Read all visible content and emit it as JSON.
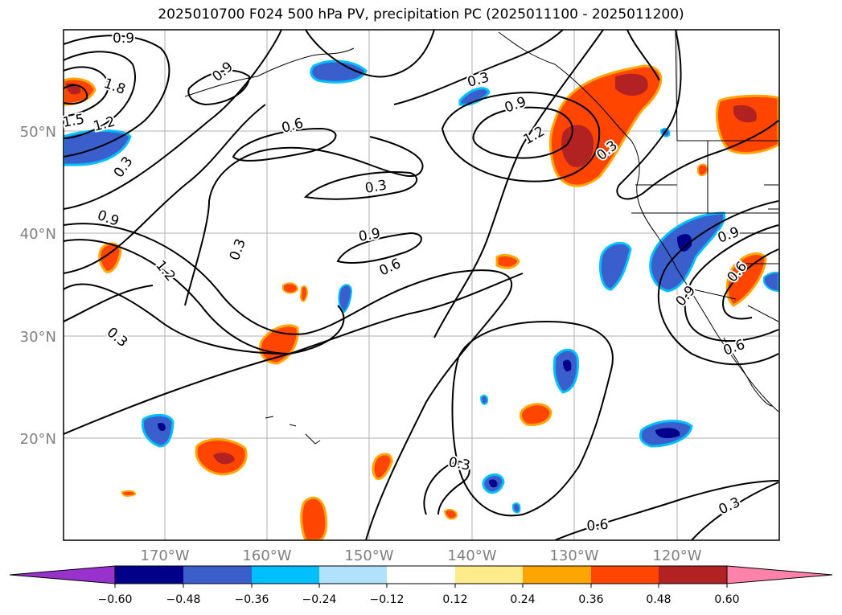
{
  "title": "2025010700 F024 500 hPa PV, precipitation PC (2025011100 - 2025011200)",
  "map": {
    "lat_labels": [
      "50°N",
      "40°N",
      "30°N",
      "20°N"
    ],
    "lon_labels": [
      "170°W",
      "160°W",
      "150°W",
      "140°W",
      "130°W",
      "120°W"
    ],
    "label_color": "#808080"
  },
  "contour_labels": [
    "0.9",
    "1.8",
    "1.5",
    "1.2",
    "0.3",
    "0.9",
    "1.2",
    "0.3",
    "0.3",
    "0.9",
    "0.6",
    "0.3",
    "0.9",
    "0.3",
    "0.9",
    "1.2",
    "0.6",
    "0.3",
    "0.3",
    "0.9",
    "0.6",
    "0.9",
    "0.6",
    "0.3",
    "0.6"
  ],
  "colorbar": {
    "ticks": [
      "−0.60",
      "−0.48",
      "−0.36",
      "−0.24",
      "−0.12",
      "0.12",
      "0.24",
      "0.36",
      "0.48",
      "0.60"
    ],
    "colors": [
      "#9932CC",
      "#00008B",
      "#3A5FCD",
      "#00BFFF",
      "#B0E2FF",
      "#FFFFFF",
      "#FFEC8B",
      "#FFA500",
      "#FF4500",
      "#B22222",
      "#FF82AB"
    ]
  }
}
